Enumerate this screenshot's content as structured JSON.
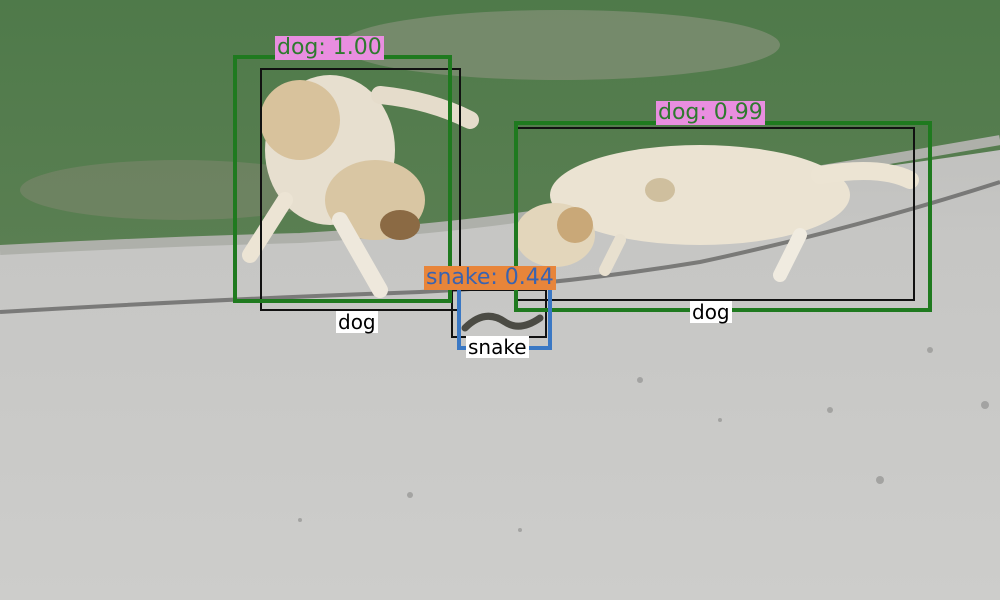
{
  "detections": [
    {
      "label": "dog: 1.00",
      "color": "#1f7a1f",
      "label_bg": "#e98ee0",
      "text_color": "#2f7a2f"
    },
    {
      "label": "dog: 0.99",
      "color": "#1f7a1f",
      "label_bg": "#e98ee0",
      "text_color": "#2f7a2f"
    },
    {
      "label": "snake: 0.44",
      "color": "#3a78c4",
      "label_bg": "#e8853a",
      "text_color": "#3a63b0"
    }
  ],
  "ground_truth": [
    {
      "label": "dog",
      "color": "#111111"
    },
    {
      "label": "dog",
      "color": "#111111"
    },
    {
      "label": "snake",
      "color": "#111111"
    }
  ]
}
